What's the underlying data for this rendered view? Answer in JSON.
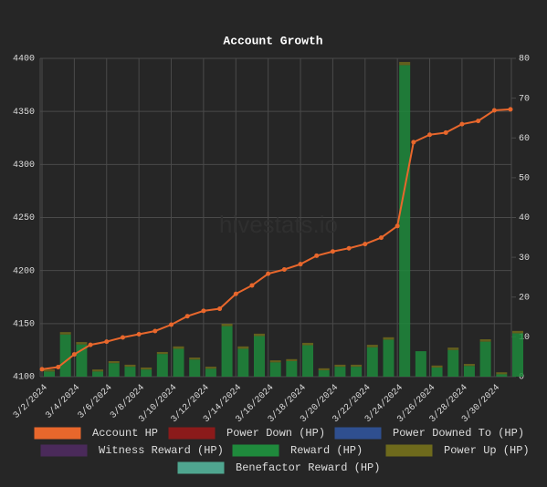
{
  "chart_data": {
    "type": "bar-line",
    "title": "Account Growth",
    "watermark": "hivestats.io",
    "categories": [
      "3/2/2024",
      null,
      "3/4/2024",
      null,
      "3/6/2024",
      null,
      "3/8/2024",
      null,
      "3/10/2024",
      null,
      "3/12/2024",
      null,
      "3/14/2024",
      null,
      "3/16/2024",
      null,
      "3/18/2024",
      null,
      "3/20/2024",
      null,
      "3/22/2024",
      null,
      "3/24/2024",
      null,
      "3/26/2024",
      null,
      "3/28/2024",
      null,
      "3/30/2024",
      null
    ],
    "ylim": [
      4100,
      4400
    ],
    "yticks": [
      4100,
      4150,
      4200,
      4250,
      4300,
      4350,
      4400
    ],
    "y2lim": [
      0,
      80
    ],
    "y2ticks": [
      0,
      10,
      20,
      30,
      40,
      50,
      60,
      70,
      80
    ],
    "grid": true,
    "series": [
      {
        "name": "Account HP",
        "color": "#e8672c",
        "kind": "line",
        "values": [
          4107,
          4109,
          4121,
          4130,
          4133,
          4137,
          4140,
          4143,
          4149,
          4157,
          4162,
          4164,
          4178,
          4186,
          4197,
          4201,
          4206,
          4214,
          4218,
          4221,
          4225,
          4231,
          4242,
          4321,
          4328,
          4330,
          4338,
          4341,
          4351,
          4352
        ]
      },
      {
        "name": "Power Down (HP)",
        "color": "#8b1a1a",
        "kind": "bar",
        "axis": "y2",
        "values": [
          0,
          0,
          0,
          0,
          0,
          0,
          0,
          0,
          0,
          0,
          0,
          0,
          0,
          0,
          0,
          0,
          0,
          0,
          0,
          0,
          0,
          0,
          0,
          0,
          0,
          0,
          0,
          0,
          0,
          0
        ]
      },
      {
        "name": "Power Downed To (HP)",
        "color": "#2f4f8f",
        "kind": "bar",
        "axis": "y2",
        "values": [
          0,
          0,
          0,
          0,
          0,
          0,
          0,
          0,
          0,
          0,
          0,
          0,
          0,
          0,
          0,
          0,
          0,
          0,
          0,
          0,
          0,
          0,
          0,
          0,
          0,
          0,
          0,
          0,
          0,
          0
        ]
      },
      {
        "name": "Witness Reward (HP)",
        "color": "#4a2a5a",
        "kind": "bar",
        "axis": "y2",
        "values": [
          0,
          0,
          0,
          0,
          0,
          0,
          0,
          0,
          0,
          0,
          0,
          0,
          0,
          0,
          0,
          0,
          0,
          0,
          0,
          0,
          0,
          0,
          0,
          0,
          0,
          0,
          0,
          0,
          0,
          0
        ]
      },
      {
        "name": "Reward (HP)",
        "color": "#1f8a3c",
        "kind": "bar",
        "axis": "y2",
        "values": [
          1.3,
          10.6,
          8.1,
          1.3,
          3.4,
          2.5,
          1.8,
          5.7,
          7.0,
          4.3,
          2.0,
          12.7,
          7.0,
          10.2,
          3.6,
          3.9,
          7.9,
          1.6,
          2.5,
          2.5,
          7.4,
          9.3,
          78.3,
          6.4,
          2.3,
          6.7,
          2.7,
          8.8,
          0.6,
          10.9
        ]
      },
      {
        "name": "Power Up (HP)",
        "color": "#6e6a1c",
        "kind": "bar",
        "axis": "y2",
        "values": [
          0.5,
          0.6,
          0.6,
          0.5,
          0.5,
          0.5,
          0.5,
          0.5,
          0.6,
          0.5,
          0.5,
          0.6,
          0.6,
          0.6,
          0.5,
          0.5,
          0.6,
          0.5,
          0.5,
          0.5,
          0.6,
          0.6,
          0.8,
          0,
          0.5,
          0.6,
          0.5,
          0.6,
          0.5,
          0.6
        ]
      },
      {
        "name": "Benefactor Reward (HP)",
        "color": "#4fa58f",
        "kind": "bar",
        "axis": "y2",
        "values": [
          0,
          0,
          0,
          0,
          0,
          0,
          0,
          0,
          0,
          0,
          0,
          0,
          0,
          0,
          0,
          0,
          0,
          0,
          0,
          0,
          0,
          0,
          0,
          0,
          0,
          0,
          0,
          0,
          0,
          0
        ]
      }
    ]
  }
}
